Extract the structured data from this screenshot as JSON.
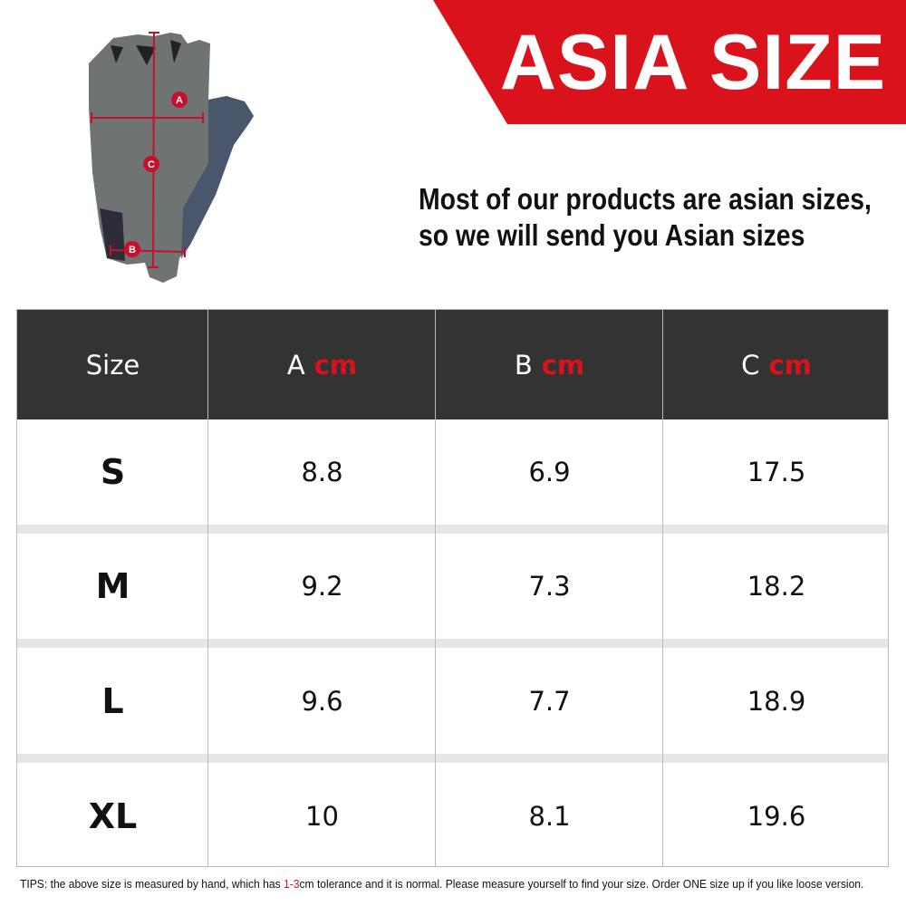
{
  "banner": {
    "title": "ASIA SIZE",
    "color": "#d9121b"
  },
  "note": {
    "line1": "Most of our products are asian sizes,",
    "line2": "so we will send you Asian sizes"
  },
  "glove": {
    "markers": [
      "A",
      "B",
      "C"
    ]
  },
  "table": {
    "headers": [
      {
        "label": "Size",
        "unit": ""
      },
      {
        "label": "A",
        "unit": "cm"
      },
      {
        "label": "B",
        "unit": "cm"
      },
      {
        "label": "C",
        "unit": "cm"
      }
    ],
    "rows": [
      {
        "size": "S",
        "a": "8.8",
        "b": "6.9",
        "c": "17.5"
      },
      {
        "size": "M",
        "a": "9.2",
        "b": "7.3",
        "c": "18.2"
      },
      {
        "size": "L",
        "a": "9.6",
        "b": "7.7",
        "c": "18.9"
      },
      {
        "size": "XL",
        "a": "10",
        "b": "8.1",
        "c": "19.6"
      }
    ]
  },
  "tips": {
    "prefix": "TIPS:  the above size is measured by hand, which has ",
    "highlight": "1-3",
    "suffix": "cm tolerance and it is normal. Please measure yourself to find your size. Order ONE size up if you like loose version."
  }
}
